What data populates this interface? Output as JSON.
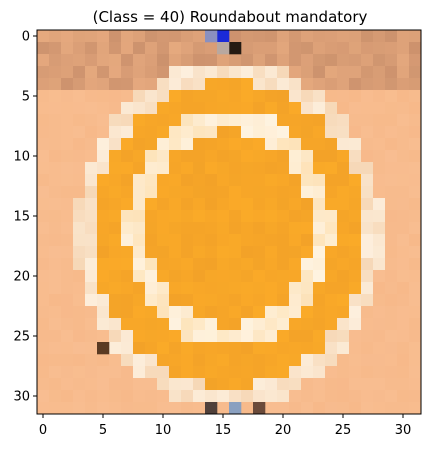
{
  "title": "(Class = 40) Roundabout mandatory",
  "x_ticks": [
    "0",
    "5",
    "10",
    "15",
    "20",
    "25",
    "30"
  ],
  "y_ticks": [
    "0",
    "5",
    "10",
    "15",
    "20",
    "25",
    "30"
  ],
  "image": {
    "grid_size": 32,
    "description_colors": {
      "background": "#f7b98a",
      "sign_fill": "#f3a228",
      "ring": "#fff7ea",
      "border": "#e9a869"
    }
  }
}
